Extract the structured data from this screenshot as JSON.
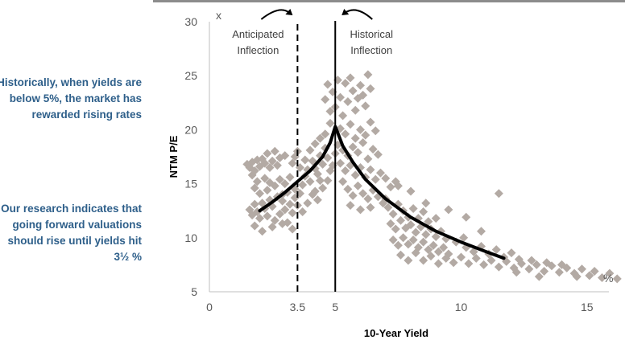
{
  "notes": {
    "top": "Historically, when yields are below 5%, the market has rewarded rising rates",
    "bottom": "Our research indicates that going forward valuations should rise until yields hit 3½ %"
  },
  "chart_data": {
    "type": "scatter",
    "title": "",
    "xlabel": "10-Year Yield",
    "ylabel": "NTM P/E",
    "x_unit": "%",
    "y_unit": "x",
    "xlim": [
      0,
      16
    ],
    "ylim": [
      5,
      30
    ],
    "x_ticks": [
      "0",
      "3.5",
      "5",
      "10",
      "15"
    ],
    "x_tick_values": [
      0,
      3.5,
      5,
      10,
      15
    ],
    "y_ticks": [
      "5",
      "10",
      "15",
      "20",
      "25",
      "30"
    ],
    "y_tick_values": [
      5,
      10,
      15,
      20,
      25,
      30
    ],
    "grid": false,
    "colors": {
      "points": "#b3aaa4",
      "curve": "#000000",
      "notes": "#2e5f8a"
    },
    "vertical_lines": [
      {
        "x": 3.5,
        "style": "dashed",
        "label_lines": [
          "Anticipated",
          "Inflection"
        ]
      },
      {
        "x": 5,
        "style": "solid",
        "label_lines": [
          "Historical",
          "Inflection"
        ]
      }
    ],
    "fit_curve": {
      "x": [
        2,
        2.5,
        3,
        3.5,
        4,
        4.5,
        4.8,
        5,
        5.3,
        5.7,
        6.2,
        7,
        8,
        9,
        10,
        11,
        11.7
      ],
      "y": [
        12.5,
        13.3,
        14.2,
        15.2,
        16.2,
        17.5,
        18.8,
        20.3,
        18.5,
        17,
        15.4,
        13.6,
        11.9,
        10.6,
        9.6,
        8.7,
        8.1
      ]
    },
    "points": [
      [
        1.5,
        16.8
      ],
      [
        1.6,
        16.5
      ],
      [
        1.7,
        17
      ],
      [
        1.8,
        16.2
      ],
      [
        1.9,
        17.2
      ],
      [
        2,
        16.6
      ],
      [
        2.1,
        17.3
      ],
      [
        2.2,
        16.9
      ],
      [
        2.3,
        17.8
      ],
      [
        2.4,
        16.5
      ],
      [
        2.5,
        17.1
      ],
      [
        2.6,
        18
      ],
      [
        2.7,
        16.7
      ],
      [
        2.8,
        17.4
      ],
      [
        1.7,
        15.8
      ],
      [
        1.8,
        14.6
      ],
      [
        1.9,
        15.2
      ],
      [
        2,
        14.1
      ],
      [
        2.2,
        15.5
      ],
      [
        2.3,
        14.4
      ],
      [
        2.4,
        15.1
      ],
      [
        2.6,
        14.8
      ],
      [
        2.8,
        15.4
      ],
      [
        3,
        15
      ],
      [
        3.1,
        14.2
      ],
      [
        3.2,
        15.6
      ],
      [
        1.6,
        12.6
      ],
      [
        1.7,
        12.1
      ],
      [
        1.8,
        13.1
      ],
      [
        1.9,
        12.4
      ],
      [
        2,
        11.8
      ],
      [
        2.1,
        13.2
      ],
      [
        2.2,
        12.7
      ],
      [
        2.3,
        12
      ],
      [
        2.4,
        13.5
      ],
      [
        2.5,
        12.9
      ],
      [
        2.6,
        11.6
      ],
      [
        2.7,
        13.8
      ],
      [
        2.8,
        12.2
      ],
      [
        2.9,
        13.4
      ],
      [
        3,
        12.6
      ],
      [
        3.1,
        11.4
      ],
      [
        3.2,
        13.1
      ],
      [
        3.3,
        12.3
      ],
      [
        3.4,
        13.7
      ],
      [
        1.8,
        11.1
      ],
      [
        2.1,
        10.6
      ],
      [
        2.5,
        11
      ],
      [
        2.9,
        11.3
      ],
      [
        3.3,
        10.8
      ],
      [
        3.5,
        13
      ],
      [
        3.6,
        14.1
      ],
      [
        3.7,
        14.9
      ],
      [
        3.8,
        15.7
      ],
      [
        3.9,
        16.3
      ],
      [
        4,
        15.2
      ],
      [
        4.1,
        17.1
      ],
      [
        4.2,
        16.4
      ],
      [
        4.3,
        15.9
      ],
      [
        4.4,
        17.6
      ],
      [
        4.5,
        16.8
      ],
      [
        3.6,
        16.5
      ],
      [
        3.8,
        17.2
      ],
      [
        4,
        18.1
      ],
      [
        4.2,
        18.7
      ],
      [
        4.4,
        19.2
      ],
      [
        4.6,
        18.3
      ],
      [
        4.7,
        17.4
      ],
      [
        3.7,
        12.4
      ],
      [
        3.9,
        13.2
      ],
      [
        4.1,
        14
      ],
      [
        4.3,
        13.5
      ],
      [
        4.5,
        14.6
      ],
      [
        4.7,
        15.3
      ],
      [
        4.8,
        16.2
      ],
      [
        3.4,
        17.5
      ],
      [
        3.3,
        16.9
      ],
      [
        3.5,
        18
      ],
      [
        4.6,
        19.6
      ],
      [
        4.8,
        20.6
      ],
      [
        4.6,
        22.8
      ],
      [
        4.7,
        24.2
      ],
      [
        4.8,
        21.7
      ],
      [
        4.9,
        23.5
      ],
      [
        5,
        22.1
      ],
      [
        5.1,
        24.6
      ],
      [
        5.2,
        23
      ],
      [
        5.3,
        21.3
      ],
      [
        5.4,
        24.3
      ],
      [
        5.5,
        22.6
      ],
      [
        5.6,
        24.8
      ],
      [
        5.7,
        23.6
      ],
      [
        5.8,
        21.8
      ],
      [
        5.9,
        22.9
      ],
      [
        6,
        24.1
      ],
      [
        6.1,
        23.2
      ],
      [
        6.2,
        22.2
      ],
      [
        6.3,
        25.1
      ],
      [
        6.4,
        23.8
      ],
      [
        5.2,
        20.1
      ],
      [
        5.4,
        19.6
      ],
      [
        5.6,
        20.5
      ],
      [
        5.8,
        19.2
      ],
      [
        6,
        20
      ],
      [
        6.2,
        19.5
      ],
      [
        6.4,
        20.7
      ],
      [
        6.6,
        19.9
      ],
      [
        5.1,
        18.6
      ],
      [
        5.3,
        18.1
      ],
      [
        5.5,
        17.6
      ],
      [
        5.7,
        18.4
      ],
      [
        5.9,
        17.9
      ],
      [
        6.1,
        18.8
      ],
      [
        6.3,
        17.3
      ],
      [
        6.5,
        18.2
      ],
      [
        6.7,
        17.7
      ],
      [
        5.2,
        16.9
      ],
      [
        5.4,
        16.2
      ],
      [
        5.6,
        16.7
      ],
      [
        5.8,
        15.8
      ],
      [
        6,
        16.5
      ],
      [
        6.2,
        15.6
      ],
      [
        6.4,
        16.3
      ],
      [
        6.6,
        15.4
      ],
      [
        6.8,
        16
      ],
      [
        7,
        15.5
      ],
      [
        7.2,
        14.7
      ],
      [
        7.4,
        15.2
      ],
      [
        5.3,
        15.2
      ],
      [
        5.5,
        14.5
      ],
      [
        5.7,
        13.9
      ],
      [
        5.9,
        14.8
      ],
      [
        6.1,
        14.1
      ],
      [
        6.3,
        13.6
      ],
      [
        6.5,
        14.4
      ],
      [
        6.7,
        13.8
      ],
      [
        6.9,
        13.2
      ],
      [
        5.6,
        13
      ],
      [
        6,
        12.6
      ],
      [
        6.4,
        12.8
      ],
      [
        7,
        13.6
      ],
      [
        7.1,
        12.8
      ],
      [
        7.3,
        12.2
      ],
      [
        7.5,
        13.1
      ],
      [
        7.7,
        12.5
      ],
      [
        7.9,
        11.9
      ],
      [
        8.1,
        12.7
      ],
      [
        8.3,
        11.8
      ],
      [
        8.5,
        12.4
      ],
      [
        8.7,
        11.5
      ],
      [
        7.2,
        11.3
      ],
      [
        7.4,
        10.8
      ],
      [
        7.6,
        11.6
      ],
      [
        7.8,
        10.9
      ],
      [
        8,
        11.2
      ],
      [
        8.2,
        10.5
      ],
      [
        8.4,
        11
      ],
      [
        8.6,
        10.3
      ],
      [
        8.8,
        10.8
      ],
      [
        9,
        10.1
      ],
      [
        9.2,
        10.6
      ],
      [
        9.4,
        9.9
      ],
      [
        7.3,
        9.8
      ],
      [
        7.5,
        9.3
      ],
      [
        7.7,
        10
      ],
      [
        7.9,
        9.4
      ],
      [
        8.1,
        9.8
      ],
      [
        8.3,
        9.1
      ],
      [
        8.5,
        9.6
      ],
      [
        8.7,
        8.9
      ],
      [
        8.9,
        9.3
      ],
      [
        9.1,
        8.7
      ],
      [
        9.3,
        9.1
      ],
      [
        9.5,
        8.5
      ],
      [
        7.6,
        8.4
      ],
      [
        7.9,
        7.9
      ],
      [
        8.2,
        8.6
      ],
      [
        8.5,
        7.9
      ],
      [
        8.8,
        8.3
      ],
      [
        9.1,
        7.6
      ],
      [
        9.4,
        8.1
      ],
      [
        9.7,
        7.7
      ],
      [
        10,
        8.2
      ],
      [
        10.3,
        7.6
      ],
      [
        10.6,
        8.1
      ],
      [
        10.9,
        7.5
      ],
      [
        11.2,
        7.9
      ],
      [
        11.5,
        7.3
      ],
      [
        11.8,
        7.8
      ],
      [
        12.1,
        7.2
      ],
      [
        12.4,
        7.6
      ],
      [
        12.7,
        7.1
      ],
      [
        13,
        7.5
      ],
      [
        13.3,
        6.9
      ],
      [
        13.6,
        7.4
      ],
      [
        13.9,
        6.8
      ],
      [
        14.2,
        7.2
      ],
      [
        14.5,
        6.7
      ],
      [
        14.8,
        7.1
      ],
      [
        15.1,
        6.5
      ],
      [
        10.2,
        9.1
      ],
      [
        10.5,
        8.7
      ],
      [
        10.8,
        9.2
      ],
      [
        11.1,
        8.5
      ],
      [
        11.4,
        8.9
      ],
      [
        11.7,
        8.2
      ],
      [
        12,
        8.6
      ],
      [
        12.3,
        8
      ],
      [
        9.8,
        9.6
      ],
      [
        10.1,
        10
      ],
      [
        12.8,
        7.9
      ],
      [
        13.4,
        7.7
      ],
      [
        14,
        7.5
      ],
      [
        14.6,
        6.4
      ],
      [
        15.3,
        6.9
      ],
      [
        15.6,
        6.3
      ],
      [
        15.9,
        6.7
      ],
      [
        16.2,
        6.2
      ],
      [
        13.1,
        6.4
      ],
      [
        12.2,
        6.8
      ],
      [
        8,
        14.3
      ],
      [
        8.6,
        13.2
      ],
      [
        9.5,
        12.6
      ],
      [
        10.2,
        11.9
      ],
      [
        11.5,
        14.1
      ],
      [
        7.5,
        14.8
      ],
      [
        9,
        11.8
      ],
      [
        10.8,
        10.6
      ],
      [
        4.9,
        16.7
      ],
      [
        5,
        17.8
      ],
      [
        4.4,
        15.3
      ],
      [
        4.2,
        14.3
      ],
      [
        3,
        17.6
      ],
      [
        3.4,
        14.5
      ],
      [
        2.9,
        14
      ]
    ]
  }
}
